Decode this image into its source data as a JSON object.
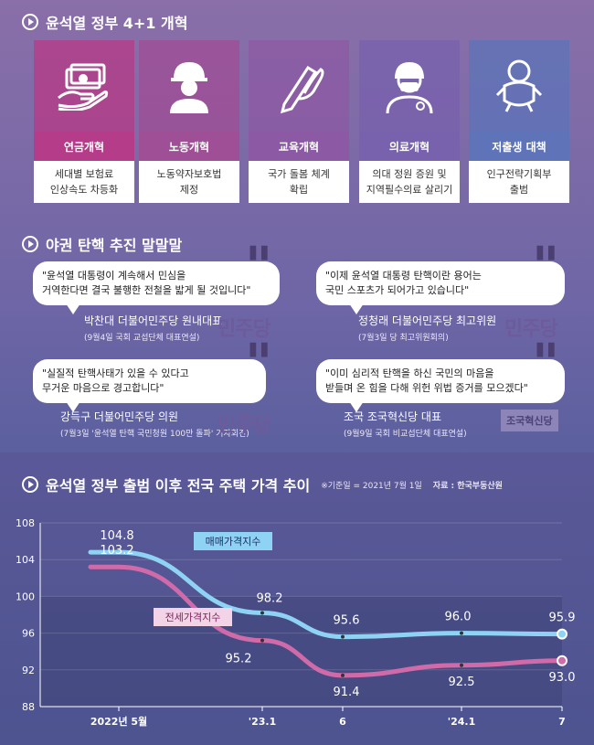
{
  "reform_section": {
    "title": "윤석열 정부 4+1 개혁",
    "cards": [
      {
        "label": "연금개혁",
        "desc": [
          "세대별 보험료",
          "인상속도 차등화"
        ],
        "color": "#b43c88",
        "icon": "money-hand-icon"
      },
      {
        "label": "노동개혁",
        "desc": [
          "노동약자보호법",
          "제정"
        ],
        "color": "#9f4f96",
        "icon": "worker-helmet-icon"
      },
      {
        "label": "교육개혁",
        "desc": [
          "국가 돌봄 체계",
          "확립"
        ],
        "color": "#8c5aa4",
        "icon": "pencil-hand-icon"
      },
      {
        "label": "의료개혁",
        "desc": [
          "의대 정원 증원 및",
          "지역필수의료 살리기"
        ],
        "color": "#7862ad",
        "icon": "doctor-icon"
      },
      {
        "label": "저출생 대책",
        "desc": [
          "인구전략기획부",
          "출범"
        ],
        "color": "#5e73b8",
        "icon": "baby-icon"
      }
    ]
  },
  "impeachment_section": {
    "title": "야권 탄핵 추진 말말말",
    "quotes": [
      {
        "text": [
          "\"윤석열 대통령이 계속해서 민심을",
          "거역한다면 결국 불행한 전철을 밟게 될 것입니다\""
        ],
        "name": "박찬대 더불어민주당 원내대표",
        "context": "(9월4일 국회 교섭단체 대표연설)",
        "party": "민주당"
      },
      {
        "text": [
          "\"이제 윤석열 대통령 탄핵이란 용어는",
          "국민 스포츠가 되어가고 있습니다\""
        ],
        "name": "정청래 더불어민주당 최고위원",
        "context": "(7월3일 당 최고위원회의)",
        "party": "민주당"
      },
      {
        "text": [
          "\"실질적 탄핵사태가 있을 수 있다고",
          "무거운 마음으로 경고합니다\""
        ],
        "name": "강득구 더불어민주당 의원",
        "context": "(7월3일 '윤석열 탄핵 국민청원 100만 돌파' 기자회견)",
        "party": "민주당"
      },
      {
        "text": [
          "\"이미 심리적 탄핵을 하신 국민의 마음을",
          "받들며 온 힘을 다해 위헌 위법 증거를 모으겠다\""
        ],
        "name": "조국 조국혁신당 대표",
        "context": "(9월9일 국회 비교섭단체 대표연설)",
        "party": "조국혁신당"
      }
    ]
  },
  "chart_section": {
    "title": "윤석열 정부 출범 이후 전국 주택 가격 추이",
    "note": "※기준일 = 2021년 7월 1일",
    "source": "자료 : 한국부동산원"
  },
  "colors": {
    "sale": "#8fd3f4",
    "jeonse": "#d16aa8",
    "accent": "#b43c88"
  },
  "chart_data": {
    "type": "line",
    "title": "윤석열 정부 출범 이후 전국 주택 가격 추이",
    "x": [
      "2022년 5월",
      "'23.1",
      "6",
      "'24.1",
      "7"
    ],
    "ylim": [
      88,
      108
    ],
    "yticks": [
      88,
      92,
      96,
      100,
      104,
      108
    ],
    "series": [
      {
        "name": "매매가격지수",
        "values": [
          104.8,
          98.2,
          95.6,
          96.0,
          95.9
        ]
      },
      {
        "name": "전세가격지수",
        "values": [
          103.2,
          95.2,
          91.4,
          92.5,
          93.0
        ]
      }
    ]
  }
}
